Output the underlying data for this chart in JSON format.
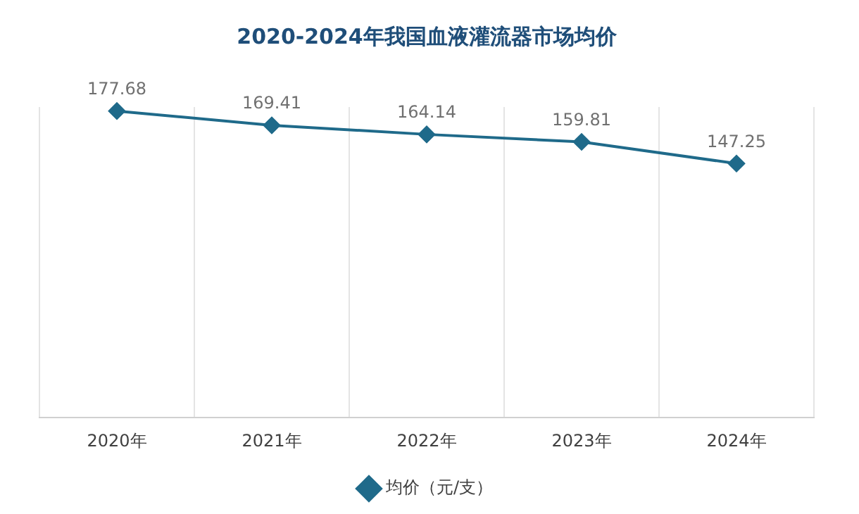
{
  "chart_data": {
    "type": "line",
    "title": "2020-2024年我国血液灌流器市场均价",
    "categories": [
      "2020年",
      "2021年",
      "2022年",
      "2023年",
      "2024年"
    ],
    "series": [
      {
        "name": "均价（元/支）",
        "color": "#1f6a8a",
        "values": [
          177.68,
          169.41,
          164.14,
          159.81,
          147.25
        ]
      }
    ],
    "data_labels": true,
    "marker": "diamond",
    "grid": "x",
    "legend": "bottom",
    "tick_labels": "x"
  }
}
